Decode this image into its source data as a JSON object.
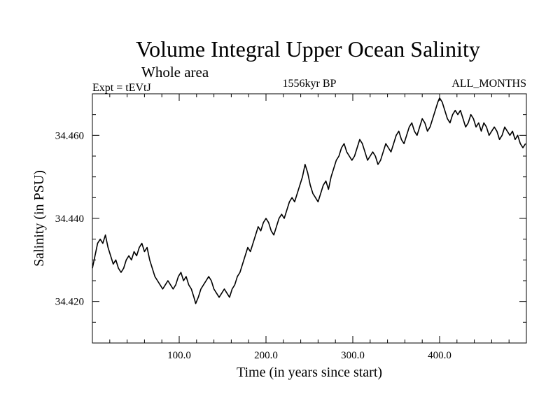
{
  "chart_data": {
    "type": "line",
    "title": "Volume Integral Upper Ocean Salinity",
    "subtitle": "Whole area",
    "header_left": "Expt = tEVtJ",
    "header_center": "1556kyr BP",
    "header_right": "ALL_MONTHS",
    "xlabel": "Time (in years since start)",
    "ylabel": "Salinity (in PSU)",
    "xlim": [
      0,
      500
    ],
    "ylim": [
      34.41,
      34.47
    ],
    "x_ticks": [
      100,
      200,
      300,
      400
    ],
    "x_tick_labels": [
      "100.0",
      "200.0",
      "300.0",
      "400.0"
    ],
    "y_ticks": [
      34.42,
      34.44,
      34.46
    ],
    "y_tick_labels": [
      "34.420",
      "34.440",
      "34.460"
    ],
    "grid": false,
    "series": [
      {
        "name": "Salinity",
        "color": "#000000",
        "points": [
          [
            0,
            34.428
          ],
          [
            3,
            34.431
          ],
          [
            6,
            34.434
          ],
          [
            9,
            34.435
          ],
          [
            12,
            34.434
          ],
          [
            15,
            34.436
          ],
          [
            18,
            34.433
          ],
          [
            21,
            34.431
          ],
          [
            24,
            34.429
          ],
          [
            27,
            34.43
          ],
          [
            30,
            34.428
          ],
          [
            33,
            34.427
          ],
          [
            36,
            34.428
          ],
          [
            39,
            34.43
          ],
          [
            42,
            34.431
          ],
          [
            45,
            34.43
          ],
          [
            48,
            34.432
          ],
          [
            51,
            34.431
          ],
          [
            54,
            34.433
          ],
          [
            57,
            34.434
          ],
          [
            60,
            34.432
          ],
          [
            63,
            34.433
          ],
          [
            66,
            34.43
          ],
          [
            69,
            34.428
          ],
          [
            72,
            34.426
          ],
          [
            75,
            34.425
          ],
          [
            78,
            34.424
          ],
          [
            81,
            34.423
          ],
          [
            84,
            34.424
          ],
          [
            87,
            34.425
          ],
          [
            90,
            34.424
          ],
          [
            93,
            34.423
          ],
          [
            96,
            34.424
          ],
          [
            99,
            34.426
          ],
          [
            102,
            34.427
          ],
          [
            105,
            34.425
          ],
          [
            108,
            34.426
          ],
          [
            111,
            34.424
          ],
          [
            114,
            34.423
          ],
          [
            117,
            34.421
          ],
          [
            119,
            34.4195
          ],
          [
            122,
            34.421
          ],
          [
            125,
            34.423
          ],
          [
            128,
            34.424
          ],
          [
            131,
            34.425
          ],
          [
            134,
            34.426
          ],
          [
            137,
            34.425
          ],
          [
            140,
            34.423
          ],
          [
            143,
            34.422
          ],
          [
            146,
            34.421
          ],
          [
            149,
            34.422
          ],
          [
            152,
            34.423
          ],
          [
            155,
            34.422
          ],
          [
            158,
            34.421
          ],
          [
            161,
            34.423
          ],
          [
            164,
            34.424
          ],
          [
            167,
            34.426
          ],
          [
            170,
            34.427
          ],
          [
            173,
            34.429
          ],
          [
            176,
            34.431
          ],
          [
            179,
            34.433
          ],
          [
            182,
            34.432
          ],
          [
            185,
            34.434
          ],
          [
            188,
            34.436
          ],
          [
            191,
            34.438
          ],
          [
            194,
            34.437
          ],
          [
            197,
            34.439
          ],
          [
            200,
            34.44
          ],
          [
            203,
            34.439
          ],
          [
            206,
            34.437
          ],
          [
            209,
            34.436
          ],
          [
            212,
            34.438
          ],
          [
            215,
            34.44
          ],
          [
            218,
            34.441
          ],
          [
            221,
            34.44
          ],
          [
            224,
            34.442
          ],
          [
            227,
            34.444
          ],
          [
            230,
            34.445
          ],
          [
            233,
            34.444
          ],
          [
            236,
            34.446
          ],
          [
            239,
            34.448
          ],
          [
            242,
            34.45
          ],
          [
            245,
            34.453
          ],
          [
            248,
            34.451
          ],
          [
            251,
            34.448
          ],
          [
            254,
            34.446
          ],
          [
            257,
            34.445
          ],
          [
            260,
            34.444
          ],
          [
            263,
            34.446
          ],
          [
            266,
            34.448
          ],
          [
            269,
            34.449
          ],
          [
            272,
            34.447
          ],
          [
            275,
            34.45
          ],
          [
            278,
            34.452
          ],
          [
            281,
            34.454
          ],
          [
            284,
            34.455
          ],
          [
            287,
            34.457
          ],
          [
            290,
            34.458
          ],
          [
            293,
            34.456
          ],
          [
            296,
            34.455
          ],
          [
            299,
            34.454
          ],
          [
            302,
            34.455
          ],
          [
            305,
            34.457
          ],
          [
            308,
            34.459
          ],
          [
            311,
            34.458
          ],
          [
            314,
            34.456
          ],
          [
            317,
            34.454
          ],
          [
            320,
            34.455
          ],
          [
            323,
            34.456
          ],
          [
            326,
            34.455
          ],
          [
            329,
            34.453
          ],
          [
            332,
            34.454
          ],
          [
            335,
            34.456
          ],
          [
            338,
            34.458
          ],
          [
            341,
            34.457
          ],
          [
            344,
            34.456
          ],
          [
            347,
            34.458
          ],
          [
            350,
            34.46
          ],
          [
            353,
            34.461
          ],
          [
            356,
            34.459
          ],
          [
            359,
            34.458
          ],
          [
            362,
            34.46
          ],
          [
            365,
            34.462
          ],
          [
            368,
            34.463
          ],
          [
            371,
            34.461
          ],
          [
            374,
            34.46
          ],
          [
            377,
            34.462
          ],
          [
            380,
            34.464
          ],
          [
            383,
            34.463
          ],
          [
            386,
            34.461
          ],
          [
            389,
            34.462
          ],
          [
            392,
            34.464
          ],
          [
            395,
            34.466
          ],
          [
            398,
            34.468
          ],
          [
            400,
            34.469
          ],
          [
            403,
            34.468
          ],
          [
            406,
            34.466
          ],
          [
            409,
            34.464
          ],
          [
            412,
            34.463
          ],
          [
            415,
            34.465
          ],
          [
            418,
            34.466
          ],
          [
            421,
            34.465
          ],
          [
            424,
            34.466
          ],
          [
            427,
            34.464
          ],
          [
            430,
            34.462
          ],
          [
            433,
            34.463
          ],
          [
            436,
            34.465
          ],
          [
            439,
            34.464
          ],
          [
            442,
            34.462
          ],
          [
            445,
            34.463
          ],
          [
            448,
            34.461
          ],
          [
            451,
            34.463
          ],
          [
            454,
            34.462
          ],
          [
            457,
            34.46
          ],
          [
            460,
            34.461
          ],
          [
            463,
            34.462
          ],
          [
            466,
            34.461
          ],
          [
            469,
            34.459
          ],
          [
            472,
            34.46
          ],
          [
            475,
            34.462
          ],
          [
            478,
            34.461
          ],
          [
            481,
            34.46
          ],
          [
            484,
            34.461
          ],
          [
            487,
            34.459
          ],
          [
            490,
            34.46
          ],
          [
            493,
            34.458
          ],
          [
            496,
            34.457
          ],
          [
            499,
            34.458
          ]
        ]
      }
    ]
  }
}
